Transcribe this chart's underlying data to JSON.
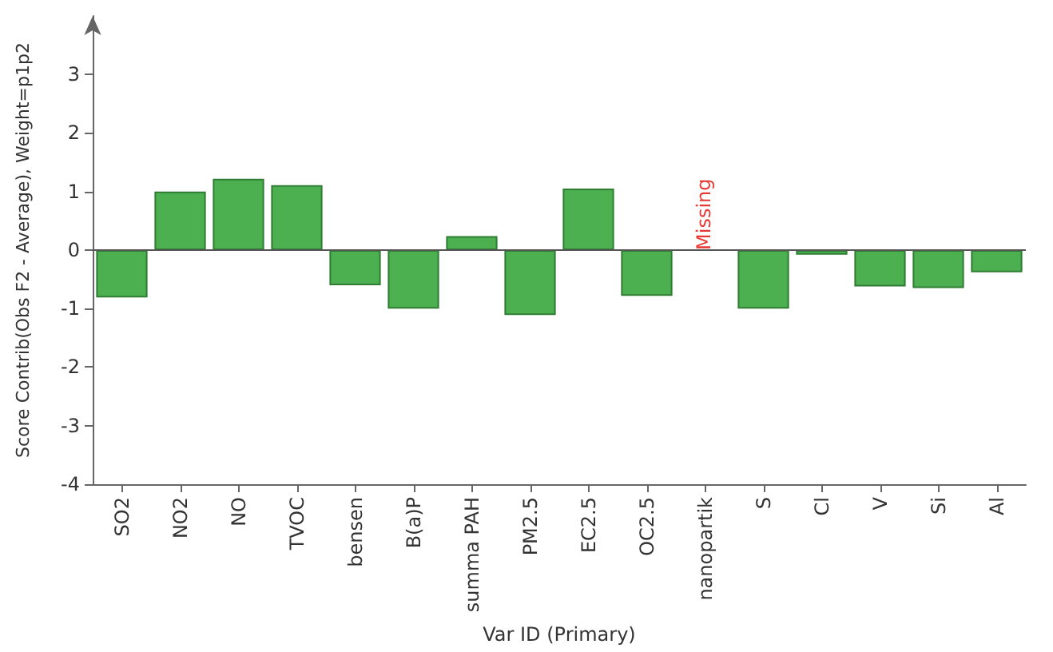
{
  "chart_data": {
    "type": "bar",
    "xlabel": "Var ID (Primary)",
    "ylabel": "Score Contrib(Obs F2 - Average), Weight=p1p2",
    "categories": [
      "SO2",
      "NO2",
      "NO",
      "TVOC",
      "bensen",
      "B(a)P",
      "summa PAH",
      "PM2.5",
      "EC2.5",
      "OC2.5",
      "nanopartik",
      "S",
      "Cl",
      "V",
      "Si",
      "Al"
    ],
    "values": [
      -0.81,
      1.0,
      1.22,
      1.11,
      -0.6,
      -1.0,
      0.24,
      -1.11,
      1.05,
      -0.78,
      null,
      -1.0,
      -0.08,
      -0.62,
      -0.65,
      -0.38
    ],
    "color": "#4caf50",
    "ylim": [
      -4,
      4
    ],
    "yticks": [
      -4,
      -3,
      -2,
      -1,
      0,
      1,
      2,
      3
    ],
    "ref_lines": [
      {
        "axis": "y",
        "value": 0,
        "color": "#555555"
      }
    ],
    "annotations": [
      {
        "text": "Missing",
        "x": "nanopartik",
        "y": 0
      }
    ]
  }
}
